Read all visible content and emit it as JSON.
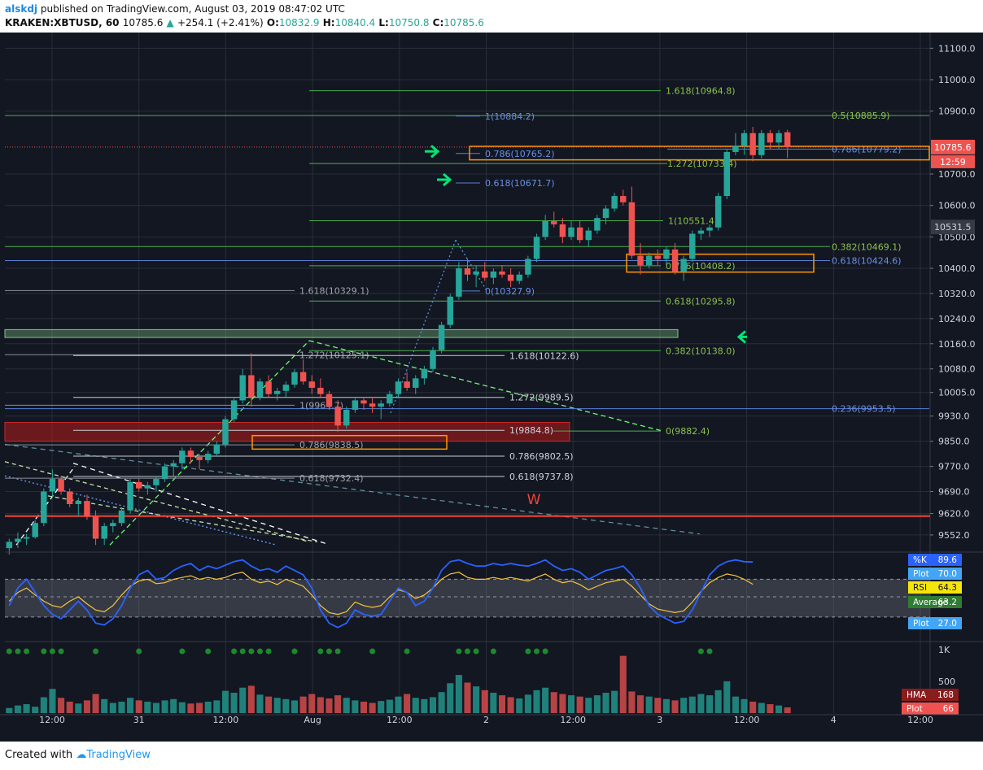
{
  "header": {
    "author": "alskdj",
    "published": "published on TradingView.com, August 03, 2019 08:47:02 UTC",
    "symbol": "KRAKEN:XBTUSD, 60",
    "last": "10785.6",
    "change": "+254.1 (+2.41%)",
    "open_label": "O:",
    "open": "10832.9",
    "high_label": "H:",
    "high": "10840.4",
    "low_label": "L:",
    "low": "10750.8",
    "close_label": "C:",
    "close": "10785.6"
  },
  "footer": {
    "created_with": "Created with",
    "brand": "TradingView"
  },
  "colors": {
    "background": "#131722",
    "up": "#26a69a",
    "down": "#ef5350",
    "fib_green": "#4caf50",
    "fib_blue": "#5b7fd6",
    "orange": "#ff9800",
    "grid": "#2a2e39",
    "axis_text": "#d1d4dc"
  },
  "chart_data": {
    "type": "candlestick",
    "price_axis": {
      "min": 9500,
      "max": 11150,
      "ticks": [
        "11100.0",
        "11000.0",
        "10900.0",
        "10700.0",
        "10600.0",
        "10500.0",
        "10400.0",
        "10320.0",
        "10240.0",
        "10160.0",
        "10080.0",
        "10005.0",
        "9930.0",
        "9850.0",
        "9770.0",
        "9690.0",
        "9620.0",
        "9552.0"
      ]
    },
    "price_labels": {
      "last": "10785.6",
      "countdown": "12:59",
      "marker": "10531.5"
    },
    "time_axis": {
      "labels": [
        "12:00",
        "31",
        "12:00",
        "Aug",
        "12:00",
        "2",
        "12:00",
        "3",
        "12:00",
        "4",
        "12:00"
      ],
      "bars_total": 107
    },
    "candles": [
      [
        9510,
        9540,
        9490,
        9530
      ],
      [
        9530,
        9560,
        9510,
        9540
      ],
      [
        9540,
        9555,
        9520,
        9545
      ],
      [
        9545,
        9600,
        9540,
        9590
      ],
      [
        9590,
        9700,
        9580,
        9690
      ],
      [
        9690,
        9760,
        9670,
        9730
      ],
      [
        9730,
        9740,
        9680,
        9690
      ],
      [
        9690,
        9700,
        9640,
        9650
      ],
      [
        9650,
        9670,
        9610,
        9660
      ],
      [
        9660,
        9680,
        9600,
        9610
      ],
      [
        9610,
        9630,
        9520,
        9540
      ],
      [
        9540,
        9590,
        9520,
        9580
      ],
      [
        9580,
        9600,
        9560,
        9590
      ],
      [
        9590,
        9640,
        9580,
        9630
      ],
      [
        9630,
        9730,
        9620,
        9720
      ],
      [
        9720,
        9730,
        9690,
        9700
      ],
      [
        9700,
        9720,
        9680,
        9710
      ],
      [
        9710,
        9740,
        9690,
        9730
      ],
      [
        9730,
        9780,
        9720,
        9770
      ],
      [
        9770,
        9790,
        9740,
        9780
      ],
      [
        9780,
        9830,
        9760,
        9820
      ],
      [
        9820,
        9830,
        9780,
        9800
      ],
      [
        9800,
        9810,
        9760,
        9790
      ],
      [
        9790,
        9820,
        9780,
        9810
      ],
      [
        9810,
        9850,
        9800,
        9840
      ],
      [
        9840,
        9930,
        9830,
        9920
      ],
      [
        9920,
        9990,
        9910,
        9980
      ],
      [
        9980,
        10080,
        9970,
        10060
      ],
      [
        10060,
        10130,
        9960,
        9990
      ],
      [
        9990,
        10050,
        9980,
        10040
      ],
      [
        10040,
        10060,
        9990,
        10000
      ],
      [
        10000,
        10020,
        9980,
        10010
      ],
      [
        10010,
        10040,
        9990,
        10030
      ],
      [
        10030,
        10080,
        10020,
        10070
      ],
      [
        10070,
        10110,
        10030,
        10040
      ],
      [
        10040,
        10060,
        10000,
        10020
      ],
      [
        10020,
        10050,
        9990,
        10000
      ],
      [
        10000,
        10010,
        9950,
        9960
      ],
      [
        9960,
        9980,
        9880,
        9900
      ],
      [
        9900,
        9960,
        9890,
        9950
      ],
      [
        9950,
        9990,
        9940,
        9980
      ],
      [
        9980,
        9990,
        9950,
        9970
      ],
      [
        9970,
        9990,
        9940,
        9960
      ],
      [
        9960,
        9980,
        9920,
        9970
      ],
      [
        9970,
        10010,
        9960,
        10000
      ],
      [
        10000,
        10050,
        9990,
        10040
      ],
      [
        10040,
        10070,
        10010,
        10020
      ],
      [
        10020,
        10060,
        10000,
        10050
      ],
      [
        10050,
        10090,
        10030,
        10080
      ],
      [
        10080,
        10150,
        10070,
        10140
      ],
      [
        10140,
        10230,
        10130,
        10220
      ],
      [
        10220,
        10320,
        10210,
        10310
      ],
      [
        10310,
        10420,
        10300,
        10400
      ],
      [
        10400,
        10430,
        10360,
        10380
      ],
      [
        10380,
        10410,
        10340,
        10390
      ],
      [
        10390,
        10420,
        10360,
        10370
      ],
      [
        10370,
        10400,
        10350,
        10390
      ],
      [
        10390,
        10410,
        10370,
        10380
      ],
      [
        10380,
        10400,
        10340,
        10360
      ],
      [
        10360,
        10390,
        10350,
        10380
      ],
      [
        10380,
        10440,
        10370,
        10430
      ],
      [
        10430,
        10510,
        10420,
        10500
      ],
      [
        10500,
        10570,
        10490,
        10550
      ],
      [
        10550,
        10580,
        10530,
        10540
      ],
      [
        10540,
        10560,
        10480,
        10500
      ],
      [
        10500,
        10550,
        10490,
        10530
      ],
      [
        10530,
        10550,
        10480,
        10490
      ],
      [
        10490,
        10530,
        10470,
        10520
      ],
      [
        10520,
        10570,
        10510,
        10560
      ],
      [
        10560,
        10600,
        10540,
        10590
      ],
      [
        10590,
        10640,
        10580,
        10630
      ],
      [
        10630,
        10650,
        10600,
        10610
      ],
      [
        10610,
        10660,
        10430,
        10440
      ],
      [
        10440,
        10480,
        10380,
        10410
      ],
      [
        10410,
        10450,
        10400,
        10440
      ],
      [
        10440,
        10460,
        10410,
        10430
      ],
      [
        10430,
        10470,
        10410,
        10460
      ],
      [
        10460,
        10480,
        10380,
        10390
      ],
      [
        10390,
        10440,
        10360,
        10430
      ],
      [
        10430,
        10520,
        10420,
        10510
      ],
      [
        10510,
        10530,
        10490,
        10520
      ],
      [
        10520,
        10540,
        10500,
        10530
      ],
      [
        10530,
        10640,
        10520,
        10630
      ],
      [
        10630,
        10780,
        10620,
        10770
      ],
      [
        10770,
        10830,
        10760,
        10790
      ],
      [
        10790,
        10840,
        10760,
        10830
      ],
      [
        10830,
        10850,
        10740,
        10760
      ],
      [
        10760,
        10840,
        10750,
        10830
      ],
      [
        10830,
        10840,
        10780,
        10800
      ],
      [
        10800,
        10840,
        10780,
        10830
      ],
      [
        10832.9,
        10840.4,
        10750.8,
        10785.6
      ]
    ],
    "horizontal_levels": [
      {
        "label": "1.618(10964.8)",
        "price": 10964.8,
        "color": "green"
      },
      {
        "label": "0.5(10885.9)",
        "price": 10885.9,
        "color": "green"
      },
      {
        "label": "1(10884.2)",
        "price": 10884.2,
        "color": "blue"
      },
      {
        "label": "0.786(10779.2)",
        "price": 10779.2,
        "color": "blue"
      },
      {
        "label": "0.786(10765.2)",
        "price": 10765.2,
        "color": "blue"
      },
      {
        "label": "1.272(10733.4)",
        "price": 10733.4,
        "color": "green"
      },
      {
        "label": "0.618(10671.7)",
        "price": 10671.7,
        "color": "blue"
      },
      {
        "label": "1(10551.4)",
        "price": 10551.4,
        "color": "green"
      },
      {
        "label": "0.382(10469.1)",
        "price": 10469.1,
        "color": "green"
      },
      {
        "label": "0.618(10424.6)",
        "price": 10424.6,
        "color": "blue"
      },
      {
        "label": "0.786(10408.2)",
        "price": 10408.2,
        "color": "green"
      },
      {
        "label": "1.618(10329.1)",
        "price": 10329.1,
        "color": "grey"
      },
      {
        "label": "0(10327.9)",
        "price": 10327.9,
        "color": "blue"
      },
      {
        "label": "0.618(10295.8)",
        "price": 10295.8,
        "color": "green"
      },
      {
        "label": "0.382(10138.0)",
        "price": 10138.0,
        "color": "green"
      },
      {
        "label": "1.272(10125.1)",
        "price": 10125.1,
        "color": "grey"
      },
      {
        "label": "1.618(10122.6)",
        "price": 10122.6,
        "color": "white"
      },
      {
        "label": "1.272(9989.5)",
        "price": 9989.5,
        "color": "white"
      },
      {
        "label": "1(9964.7)",
        "price": 9964.7,
        "color": "grey"
      },
      {
        "label": "0.236(9953.5)",
        "price": 9953.5,
        "color": "blue"
      },
      {
        "label": "1(9884.8)",
        "price": 9884.8,
        "color": "white"
      },
      {
        "label": "0(9882.4)",
        "price": 9882.4,
        "color": "green"
      },
      {
        "label": "0.786(9838.5)",
        "price": 9838.5,
        "color": "grey"
      },
      {
        "label": "0.786(9802.5)",
        "price": 9802.5,
        "color": "white"
      },
      {
        "label": "0.618(9737.8)",
        "price": 9737.8,
        "color": "white"
      },
      {
        "label": "0.618(9732.4)",
        "price": 9732.4,
        "color": "grey"
      }
    ],
    "annotation": "W",
    "oscillator": {
      "labels": [
        {
          "name": "%K",
          "value": "89.6",
          "color": "#2962ff"
        },
        {
          "name": "Plot",
          "value": "70.0",
          "color": "#42a5f5"
        },
        {
          "name": "RSI",
          "value": "64.3",
          "color": "#f5e50b"
        },
        {
          "name": "Average",
          "value": "63.2",
          "color": "#2e7d32"
        },
        {
          "name": "Plot",
          "value": "27.0",
          "color": "#42a5f5"
        }
      ],
      "stoch_k": [
        40,
        60,
        70,
        55,
        40,
        30,
        25,
        35,
        45,
        35,
        20,
        18,
        25,
        40,
        60,
        75,
        80,
        70,
        72,
        80,
        85,
        88,
        80,
        85,
        82,
        86,
        90,
        92,
        85,
        80,
        82,
        78,
        85,
        80,
        75,
        60,
        35,
        20,
        15,
        20,
        35,
        30,
        28,
        30,
        45,
        60,
        55,
        40,
        45,
        60,
        80,
        90,
        92,
        88,
        85,
        85,
        88,
        86,
        88,
        86,
        85,
        88,
        92,
        85,
        80,
        82,
        78,
        70,
        75,
        80,
        82,
        85,
        75,
        60,
        40,
        30,
        25,
        20,
        22,
        35,
        55,
        75,
        85,
        90,
        92,
        90,
        89.6
      ],
      "rsi": [
        45,
        55,
        60,
        52,
        45,
        40,
        38,
        45,
        50,
        42,
        35,
        33,
        40,
        52,
        62,
        68,
        70,
        65,
        66,
        70,
        72,
        74,
        70,
        72,
        70,
        72,
        76,
        78,
        70,
        66,
        68,
        64,
        70,
        66,
        62,
        52,
        40,
        32,
        30,
        33,
        44,
        40,
        38,
        40,
        50,
        58,
        55,
        48,
        52,
        60,
        70,
        76,
        78,
        72,
        70,
        70,
        72,
        70,
        72,
        70,
        68,
        72,
        76,
        70,
        66,
        68,
        64,
        58,
        62,
        66,
        68,
        70,
        62,
        52,
        42,
        36,
        34,
        32,
        34,
        44,
        56,
        66,
        72,
        76,
        74,
        70,
        64.3
      ]
    },
    "volume": {
      "axis_ticks": [
        "1K",
        "500"
      ],
      "labels": [
        {
          "name": "HMA",
          "value": "168",
          "color": "#8b1c1c"
        },
        {
          "name": "Plot",
          "value": "66",
          "color": "#ef5350"
        }
      ],
      "values": [
        80,
        120,
        140,
        100,
        250,
        380,
        240,
        180,
        150,
        200,
        300,
        220,
        160,
        180,
        240,
        200,
        180,
        160,
        200,
        220,
        170,
        150,
        160,
        180,
        200,
        350,
        320,
        400,
        430,
        290,
        260,
        240,
        220,
        200,
        260,
        300,
        250,
        230,
        280,
        240,
        200,
        180,
        160,
        190,
        210,
        260,
        300,
        240,
        220,
        250,
        330,
        470,
        600,
        480,
        420,
        360,
        320,
        280,
        250,
        230,
        290,
        360,
        400,
        330,
        300,
        280,
        260,
        240,
        280,
        320,
        350,
        900,
        340,
        280,
        260,
        240,
        220,
        200,
        240,
        260,
        300,
        280,
        360,
        500,
        260,
        220,
        180,
        160,
        140,
        120,
        90
      ]
    }
  }
}
